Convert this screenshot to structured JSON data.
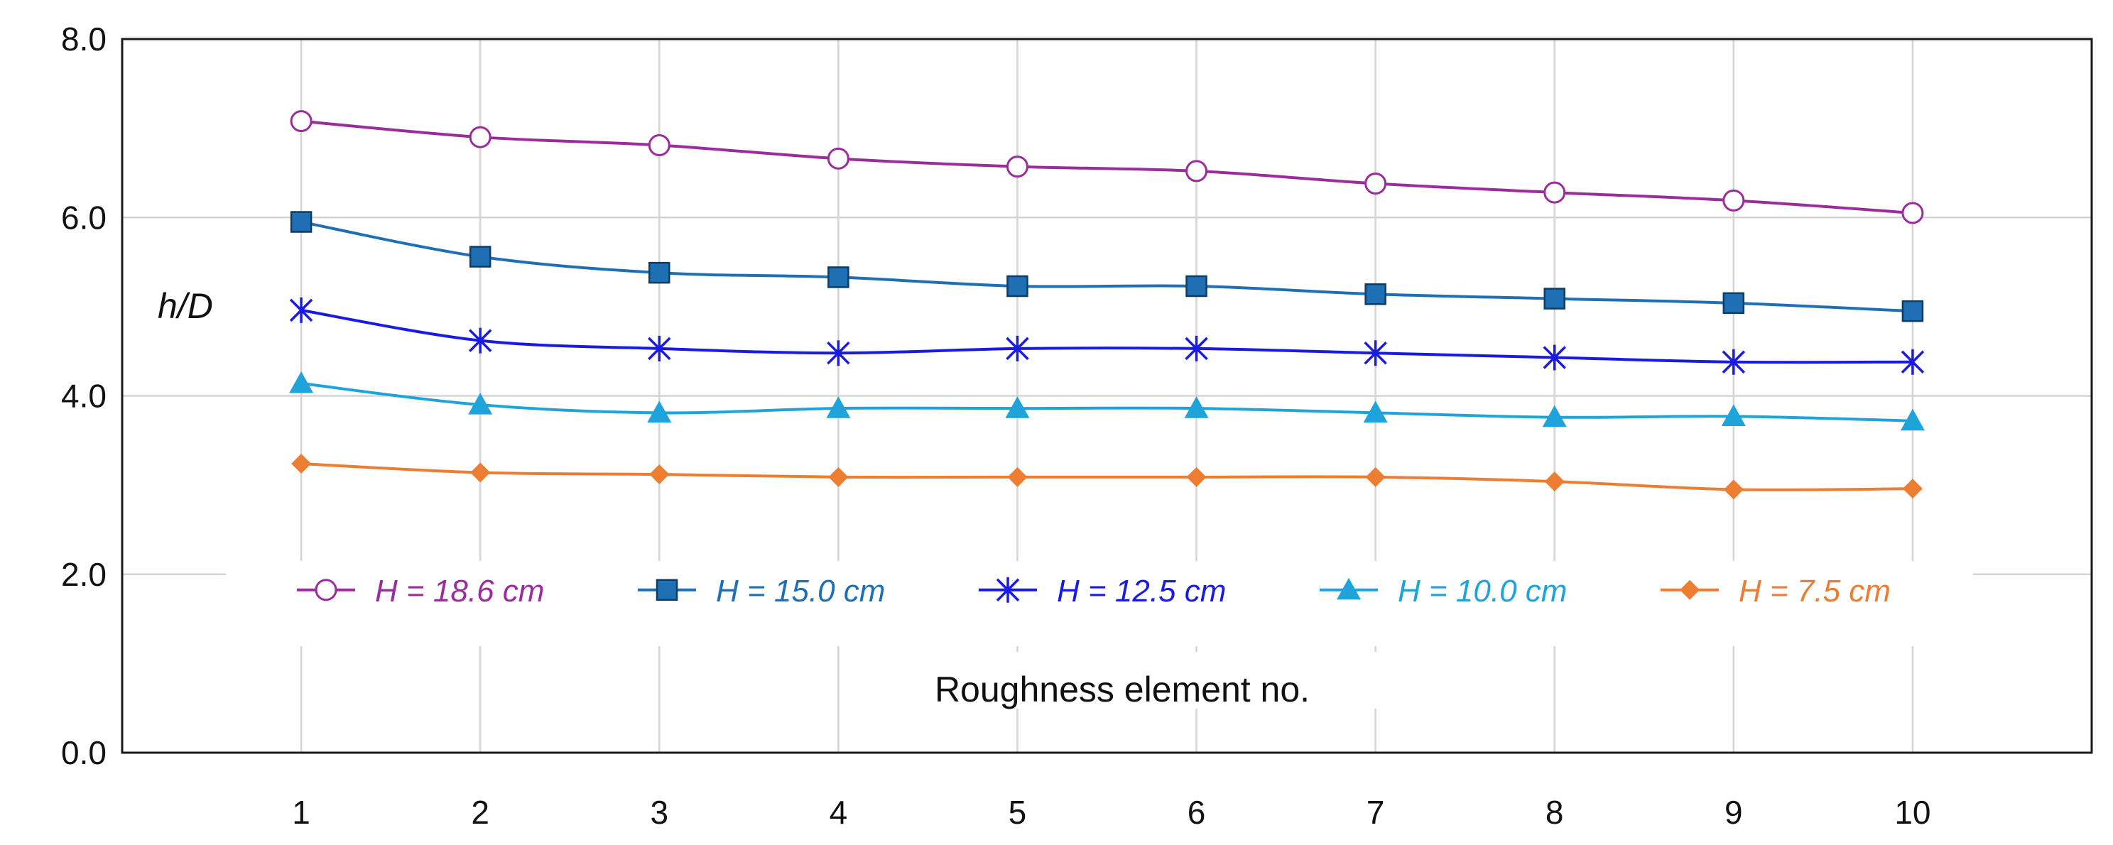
{
  "chart_data": {
    "type": "line",
    "xlabel": "Roughness element no.",
    "ylabel": "h/D",
    "x": [
      1,
      2,
      3,
      4,
      5,
      6,
      7,
      8,
      9,
      10
    ],
    "x_tick_labels": [
      "1",
      "2",
      "3",
      "4",
      "5",
      "6",
      "7",
      "8",
      "9",
      "10"
    ],
    "xlim": [
      0,
      11
    ],
    "ylim": [
      0,
      8
    ],
    "y_ticks": [
      0,
      2,
      4,
      6,
      8
    ],
    "y_tick_labels": [
      "0.0",
      "2.0",
      "4.0",
      "6.0",
      "8.0"
    ],
    "grid": true,
    "legend_position": "bottom, inside plot",
    "series": [
      {
        "name": "H = 18.6 cm",
        "color": "#9B2C9B",
        "marker": "circle-open",
        "values": [
          7.08,
          6.9,
          6.81,
          6.66,
          6.57,
          6.52,
          6.38,
          6.28,
          6.19,
          6.05
        ]
      },
      {
        "name": "H = 15.0 cm",
        "color": "#1F6FB5",
        "marker": "square",
        "values": [
          5.95,
          5.56,
          5.38,
          5.33,
          5.23,
          5.23,
          5.14,
          5.09,
          5.04,
          4.95
        ]
      },
      {
        "name": "H = 12.5 cm",
        "color": "#1A1AE6",
        "marker": "asterisk",
        "values": [
          4.96,
          4.62,
          4.53,
          4.48,
          4.53,
          4.53,
          4.48,
          4.43,
          4.38,
          4.38
        ]
      },
      {
        "name": "H = 10.0 cm",
        "color": "#1FA3DB",
        "marker": "triangle",
        "values": [
          4.14,
          3.9,
          3.81,
          3.86,
          3.86,
          3.86,
          3.81,
          3.76,
          3.77,
          3.72
        ]
      },
      {
        "name": "H = 7.5 cm",
        "color": "#ED7D31",
        "marker": "diamond",
        "values": [
          3.24,
          3.14,
          3.12,
          3.09,
          3.09,
          3.09,
          3.09,
          3.04,
          2.95,
          2.96
        ]
      }
    ]
  }
}
